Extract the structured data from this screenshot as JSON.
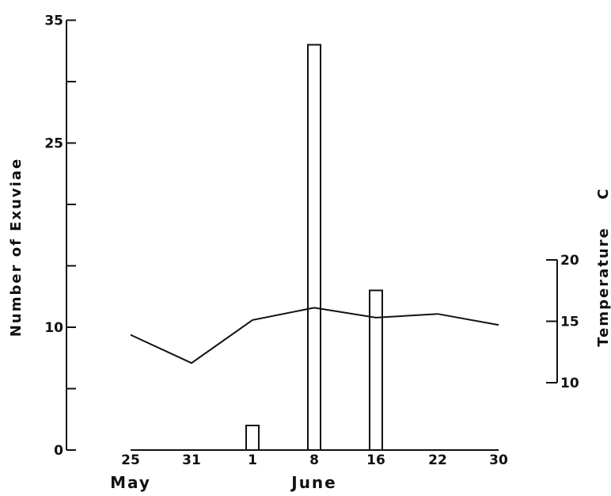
{
  "chart_data": {
    "type": "bar",
    "x": [
      "25",
      "31",
      "1",
      "8",
      "16",
      "22",
      "30"
    ],
    "month_labels": [
      {
        "label": "May",
        "under": "25"
      },
      {
        "label": "June",
        "under": "8"
      }
    ],
    "series": [
      {
        "type": "bar",
        "axis": "left",
        "values": [
          0,
          0,
          2,
          33,
          13,
          0,
          0
        ]
      },
      {
        "type": "line",
        "axis": "right",
        "values": [
          13.9,
          11.6,
          15.1,
          16.1,
          15.3,
          15.6,
          14.7
        ]
      }
    ],
    "left_axis": {
      "label": "Number of Exuviae",
      "ylim": [
        0,
        35
      ],
      "ticks": [
        0,
        5,
        10,
        15,
        20,
        25,
        30,
        35
      ],
      "tick_labels": [
        "0",
        "",
        "10",
        "",
        "",
        "25",
        "",
        "35"
      ]
    },
    "right_axis": {
      "label": "Temperature",
      "unit": "C",
      "range": [
        10,
        20
      ],
      "ticks": [
        10,
        15,
        20
      ],
      "tick_labels": [
        "10",
        "15",
        "20"
      ]
    },
    "grid": false
  }
}
